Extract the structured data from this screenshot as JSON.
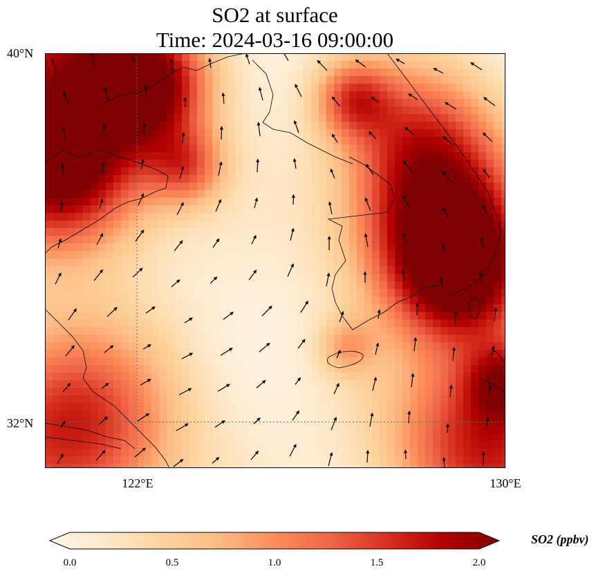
{
  "title": {
    "line1": "SO2 at surface",
    "line2": "Time: 2024-03-16 09:00:00"
  },
  "axes": {
    "lat_ticks": [
      "40°N",
      "32°N"
    ],
    "lon_ticks": [
      "122°E",
      "130°E"
    ]
  },
  "colorbar": {
    "label": "SO2 (ppbv)",
    "ticks": [
      "0.0",
      "0.5",
      "1.0",
      "1.5",
      "2.0"
    ],
    "range": [
      0,
      2
    ],
    "colormap": [
      "#fff7ec",
      "#fee8c8",
      "#fdd49e",
      "#fdbb84",
      "#fc8d59",
      "#ef6548",
      "#d7301f",
      "#b30000",
      "#7f0000"
    ]
  },
  "map": {
    "extent": {
      "lon": [
        120,
        130
      ],
      "lat": [
        31,
        40
      ]
    },
    "gridlines": {
      "lon": [
        122
      ],
      "lat": [
        32
      ]
    },
    "style": {
      "coastline_color": "#000000",
      "grid_color": "#666666"
    }
  }
}
